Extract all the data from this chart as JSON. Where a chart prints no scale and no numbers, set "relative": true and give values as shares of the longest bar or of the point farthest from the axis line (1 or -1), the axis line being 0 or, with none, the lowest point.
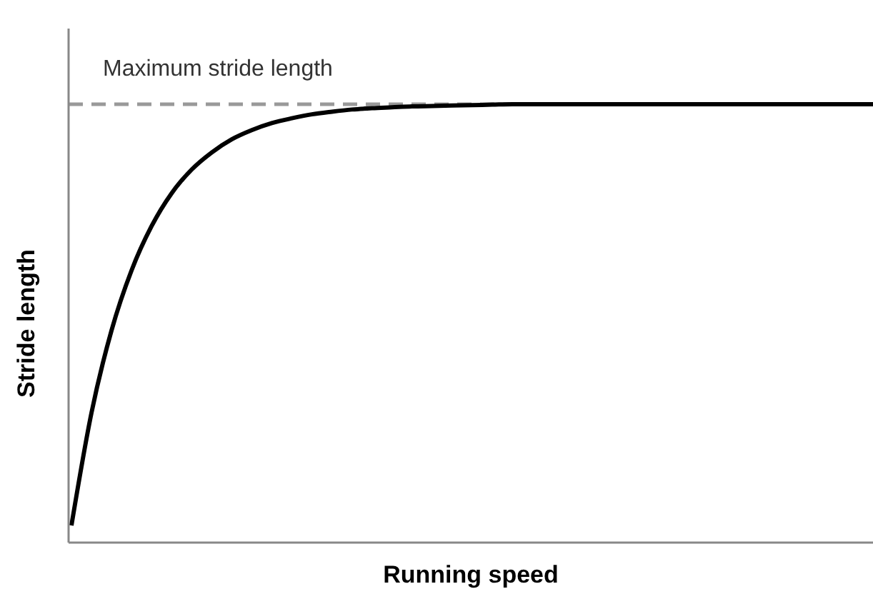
{
  "chart_data": {
    "type": "line",
    "relative": true,
    "xlabel": "Running speed",
    "ylabel": "Stride length",
    "categories": [
      null,
      null,
      null,
      null,
      null,
      null,
      null,
      null,
      null,
      null,
      null,
      null,
      null,
      null,
      null,
      null,
      null,
      null,
      null,
      null,
      null,
      null,
      null,
      null,
      null,
      null,
      null,
      null,
      null,
      null,
      null,
      null,
      null,
      null,
      null,
      null,
      null,
      null,
      null,
      null,
      null
    ],
    "series": [
      {
        "color": "#000000",
        "values": [
          0.039,
          0.296,
          0.484,
          0.621,
          0.722,
          0.797,
          0.851,
          0.89,
          0.92,
          0.941,
          0.957,
          0.968,
          0.977,
          0.983,
          0.988,
          0.991,
          0.993,
          0.995,
          0.996,
          0.997,
          0.998,
          0.999,
          1,
          1,
          1,
          1,
          1,
          1,
          1,
          1,
          1,
          1,
          1,
          1,
          1,
          1,
          1,
          1,
          1,
          1,
          1
        ]
      }
    ],
    "ref_lines": [
      {
        "axis": "y",
        "value": 1,
        "label": "Maximum stride length",
        "color": "#999999",
        "line_style": "dashed"
      }
    ]
  }
}
